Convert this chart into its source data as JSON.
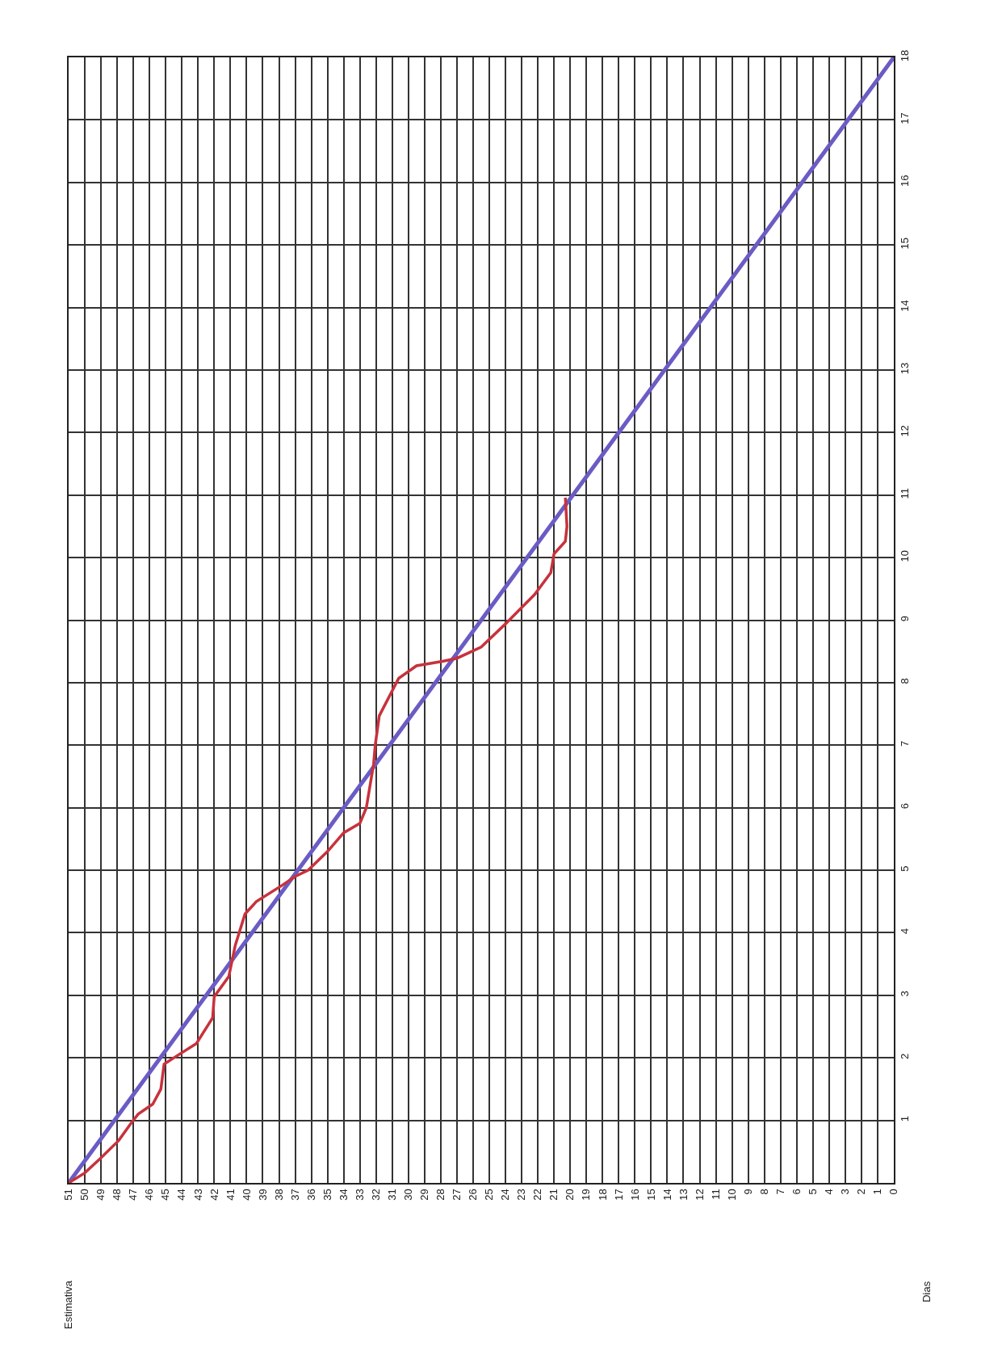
{
  "chart_data": {
    "type": "line",
    "annotations": [
      "Estimativa",
      "Dias"
    ],
    "xlim": [
      51,
      0
    ],
    "xticks": [
      51,
      50,
      49,
      48,
      47,
      46,
      45,
      44,
      43,
      42,
      41,
      40,
      39,
      38,
      37,
      36,
      35,
      34,
      33,
      32,
      31,
      30,
      29,
      28,
      27,
      26,
      25,
      24,
      23,
      22,
      21,
      20,
      19,
      18,
      17,
      16,
      15,
      14,
      13,
      12,
      11,
      10,
      9,
      8,
      7,
      6,
      5,
      4,
      3,
      2,
      1,
      0
    ],
    "ylim": [
      0,
      18
    ],
    "yticks": [
      {
        "value": 0,
        "label": null
      },
      1,
      2,
      3,
      4,
      5,
      6,
      7,
      8,
      9,
      10,
      11,
      12,
      13,
      14,
      15,
      16,
      17,
      18
    ],
    "grid": true,
    "marker": "none",
    "line_style": "solid",
    "series": [
      {
        "color": "#6a5cc4",
        "x": [
          51,
          0
        ],
        "values": [
          0,
          18
        ]
      },
      {
        "color": "#c8323c",
        "x": [
          51,
          50.0,
          49.0,
          47.9,
          47.1,
          46.7,
          45.8,
          45.3,
          45.1,
          44.2,
          43.1,
          42.1,
          42.0,
          41.1,
          40.7,
          40.1,
          39.4,
          37.8,
          37.0,
          36.2,
          35.0,
          34.0,
          33.0,
          32.6,
          32.15,
          32.05,
          31.8,
          30.6,
          29.5,
          27.9,
          27.0,
          25.5,
          24.0,
          22.2,
          21.2,
          21.0,
          20.3,
          20.2,
          20.3
        ],
        "values": [
          0,
          0.16,
          0.4,
          0.68,
          0.97,
          1.1,
          1.26,
          1.5,
          1.9,
          2.05,
          2.23,
          2.64,
          2.98,
          3.3,
          3.8,
          4.3,
          4.5,
          4.76,
          4.9,
          5.0,
          5.3,
          5.6,
          5.75,
          6.0,
          6.7,
          7.0,
          7.47,
          8.07,
          8.27,
          8.34,
          8.39,
          8.57,
          8.94,
          9.41,
          9.76,
          10.06,
          10.26,
          10.5,
          10.96
        ]
      }
    ]
  }
}
